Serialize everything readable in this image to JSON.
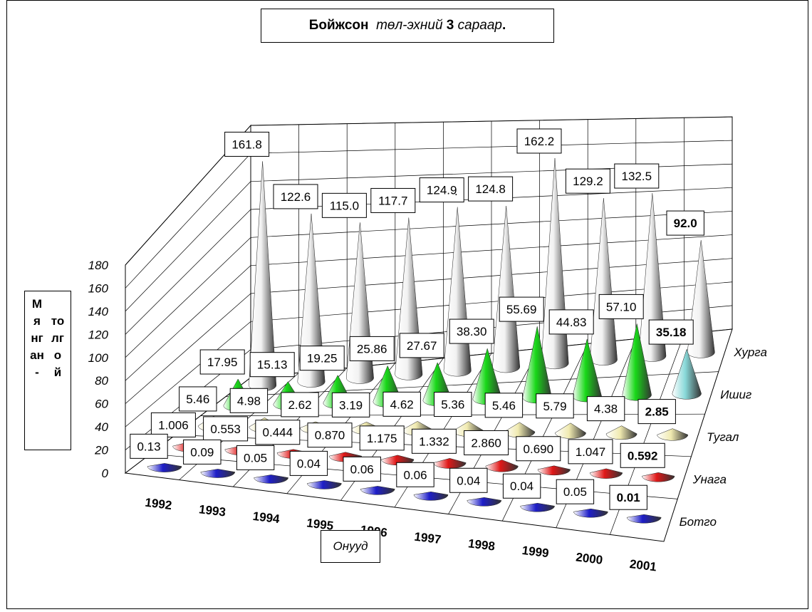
{
  "chart_data": {
    "type": "3d-cone",
    "title_parts": [
      {
        "text": "Бойжсон ",
        "style": "b"
      },
      {
        "text": " төл-эхний ",
        "style": "i"
      },
      {
        "text": "3",
        "style": "b"
      },
      {
        "text": " сараар",
        "style": "i"
      },
      {
        "text": ".",
        "style": "b"
      }
    ],
    "ylabel": "Мянган-толгой",
    "ylabel_col1": "Мянган-",
    "ylabel_col2": "толгой",
    "xlabel": "Онууд",
    "zlim": [
      0,
      180
    ],
    "z_ticks": [
      "0",
      "20",
      "40",
      "60",
      "80",
      "100",
      "120",
      "140",
      "160",
      "180"
    ],
    "categories": [
      "1992",
      "1993",
      "1994",
      "1995",
      "1996",
      "1997",
      "1998",
      "1999",
      "2000",
      "2001"
    ],
    "series": [
      {
        "name": "Ботго",
        "color": "#1e1ec8",
        "values": [
          0.13,
          0.09,
          0.05,
          0.04,
          0.06,
          0.06,
          0.04,
          0.04,
          0.05,
          0.01
        ],
        "labels": [
          "0.13",
          "0.09",
          "0.05",
          "0.04",
          "0.06",
          "0.06",
          "0.04",
          "0.04",
          "0.05",
          "0.01"
        ]
      },
      {
        "name": "Унага",
        "color": "#e01818",
        "values": [
          1.006,
          0.553,
          0.444,
          0.87,
          1.175,
          1.332,
          2.86,
          0.69,
          1.047,
          0.592
        ],
        "labels": [
          "1.006",
          "0.553",
          "0.444",
          "0.870",
          "1.175",
          "1.332",
          "2.860",
          "0.690",
          "1.047",
          "0.592"
        ]
      },
      {
        "name": "Тугал",
        "color": "#f0eab0",
        "values": [
          5.46,
          4.98,
          2.62,
          3.19,
          4.62,
          5.36,
          5.46,
          5.79,
          4.38,
          2.85
        ],
        "labels": [
          "5.46",
          "4.98",
          "2.62",
          "3.19",
          "4.62",
          "5.36",
          "5.46",
          "5.79",
          "4.38",
          "2.85"
        ]
      },
      {
        "name": "Ишиг",
        "color": "#18d818",
        "last_color": "#88d8d8",
        "values": [
          17.95,
          15.13,
          19.25,
          25.86,
          27.67,
          38.3,
          55.69,
          44.83,
          57.1,
          35.18
        ],
        "labels": [
          "17.95",
          "15.13",
          "19.25",
          "25.86",
          "27.67",
          "38.30",
          "55.69",
          "44.83",
          "57.10",
          "35.18"
        ]
      },
      {
        "name": "Хурга",
        "color": "#f2f2f2",
        "values": [
          161.8,
          122.6,
          115.0,
          117.7,
          124.9,
          124.8,
          162.2,
          129.2,
          132.5,
          92.0
        ],
        "labels": [
          "161.8",
          "122.6",
          "115.0",
          "117.7",
          "124.9",
          "124.8",
          "162.2",
          "129.2",
          "132.5",
          "92.0"
        ]
      }
    ],
    "stray_mark": "."
  }
}
